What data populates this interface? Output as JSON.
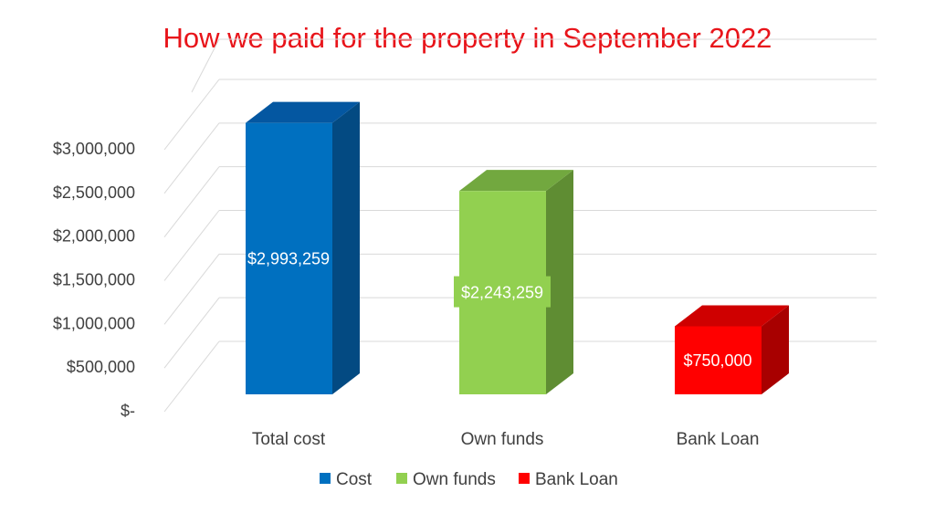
{
  "chart_data": {
    "type": "bar",
    "title": "How we paid for the property in September 2022",
    "categories": [
      "Total cost",
      "Own funds",
      "Bank Loan"
    ],
    "values": [
      2993259,
      2243259,
      750000
    ],
    "data_labels": [
      "$2,993,259",
      "$2,243,259",
      "$750,000"
    ],
    "series": [
      {
        "name": "Cost",
        "category": "Total cost",
        "value": 2993259
      },
      {
        "name": "Own funds",
        "category": "Own funds",
        "value": 2243259
      },
      {
        "name": "Bank Loan",
        "category": "Bank Loan",
        "value": 750000
      }
    ],
    "y_ticks": [
      0,
      500000,
      1000000,
      1500000,
      2000000,
      2500000,
      3000000
    ],
    "y_tick_labels": [
      "$-",
      "$500,000",
      "$1,000,000",
      "$1,500,000",
      "$2,000,000",
      "$2,500,000",
      "$3,000,000"
    ],
    "ylim": [
      0,
      3000000
    ],
    "xlabel": "",
    "ylabel": "",
    "grid": true,
    "legend_position": "bottom",
    "three_d": true,
    "colors": {
      "title": "#e8141a",
      "axis_text": "#404040",
      "grid": "#d9d9d9",
      "label_text": "#ffffff",
      "series": [
        {
          "front": "#0070c0",
          "side": "#034a82",
          "top": "#0457a1"
        },
        {
          "front": "#92d050",
          "side": "#5f8d33",
          "top": "#72a83f"
        },
        {
          "front": "#ff0000",
          "side": "#a80000",
          "top": "#cf0000"
        }
      ]
    }
  }
}
